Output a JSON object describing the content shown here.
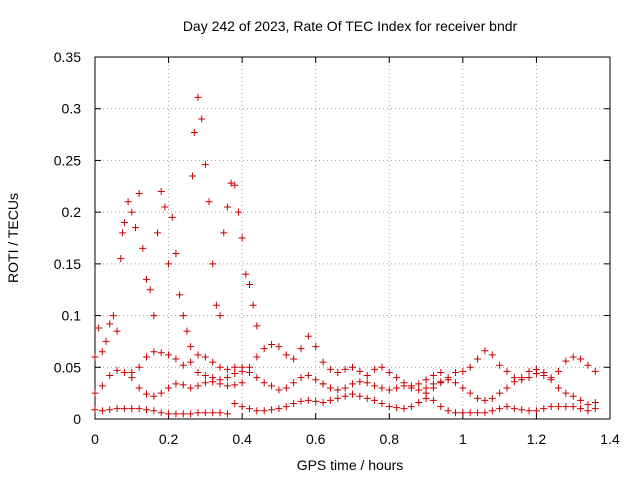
{
  "chart_data": {
    "type": "scatter",
    "title": "Day 242 of 2023, Rate Of TEC Index for receiver bndr",
    "xlabel": "GPS time / hours",
    "ylabel": "ROTI / TECUs",
    "xlim": [
      0,
      1.4
    ],
    "ylim": [
      0,
      0.35
    ],
    "xticks": [
      0,
      0.2,
      0.4,
      0.6,
      0.8,
      1,
      1.2,
      1.4
    ],
    "xtick_labels": [
      "0",
      "0.2",
      "0.4",
      "0.6",
      "0.8",
      "1",
      "1.2",
      "1.4"
    ],
    "yticks": [
      0,
      0.05,
      0.1,
      0.15,
      0.2,
      0.25,
      0.3,
      0.35
    ],
    "ytick_labels": [
      "0",
      "0.05",
      "0.1",
      "0.15",
      "0.2",
      "0.25",
      "0.3",
      "0.35"
    ],
    "grid": true,
    "marker": "+",
    "marker_color": "#cc0000",
    "series": [
      {
        "points": [
          [
            0.0,
            0.009
          ],
          [
            0.02,
            0.008
          ],
          [
            0.04,
            0.009
          ],
          [
            0.06,
            0.01
          ],
          [
            0.08,
            0.01
          ],
          [
            0.1,
            0.01
          ],
          [
            0.12,
            0.01
          ],
          [
            0.14,
            0.009
          ],
          [
            0.16,
            0.008
          ],
          [
            0.18,
            0.006
          ],
          [
            0.2,
            0.005
          ],
          [
            0.22,
            0.005
          ],
          [
            0.24,
            0.005
          ],
          [
            0.26,
            0.005
          ],
          [
            0.28,
            0.006
          ],
          [
            0.3,
            0.006
          ],
          [
            0.32,
            0.006
          ],
          [
            0.34,
            0.006
          ],
          [
            0.36,
            0.005
          ]
        ]
      },
      {
        "points": [
          [
            0.0,
            0.025
          ],
          [
            0.02,
            0.032
          ],
          [
            0.04,
            0.042
          ],
          [
            0.06,
            0.047
          ],
          [
            0.08,
            0.045
          ],
          [
            0.1,
            0.04
          ],
          [
            0.12,
            0.03
          ],
          [
            0.14,
            0.024
          ],
          [
            0.16,
            0.022
          ],
          [
            0.18,
            0.025
          ],
          [
            0.2,
            0.03
          ],
          [
            0.22,
            0.034
          ],
          [
            0.24,
            0.033
          ],
          [
            0.26,
            0.03
          ],
          [
            0.28,
            0.032
          ],
          [
            0.3,
            0.035
          ],
          [
            0.32,
            0.036
          ],
          [
            0.34,
            0.034
          ],
          [
            0.36,
            0.032
          ],
          [
            0.38,
            0.033
          ],
          [
            0.4,
            0.035
          ]
        ]
      },
      {
        "points": [
          [
            0.1,
            0.045
          ],
          [
            0.12,
            0.05
          ],
          [
            0.14,
            0.06
          ],
          [
            0.16,
            0.065
          ],
          [
            0.18,
            0.064
          ],
          [
            0.2,
            0.062
          ],
          [
            0.22,
            0.058
          ],
          [
            0.24,
            0.052
          ],
          [
            0.26,
            0.055
          ],
          [
            0.28,
            0.062
          ],
          [
            0.3,
            0.06
          ],
          [
            0.32,
            0.055
          ],
          [
            0.34,
            0.05
          ],
          [
            0.36,
            0.048
          ],
          [
            0.38,
            0.05
          ],
          [
            0.4,
            0.05
          ],
          [
            0.42,
            0.045
          ],
          [
            0.44,
            0.04
          ],
          [
            0.46,
            0.035
          ],
          [
            0.48,
            0.032
          ],
          [
            0.5,
            0.028
          ],
          [
            0.52,
            0.03
          ],
          [
            0.54,
            0.035
          ],
          [
            0.56,
            0.04
          ],
          [
            0.58,
            0.042
          ],
          [
            0.6,
            0.038
          ],
          [
            0.62,
            0.034
          ]
        ]
      },
      {
        "points": [
          [
            0.28,
            0.045
          ],
          [
            0.3,
            0.042
          ],
          [
            0.32,
            0.04
          ],
          [
            0.34,
            0.038
          ],
          [
            0.36,
            0.04
          ],
          [
            0.38,
            0.044
          ],
          [
            0.4,
            0.046
          ],
          [
            0.42,
            0.05
          ],
          [
            0.44,
            0.06
          ],
          [
            0.46,
            0.068
          ],
          [
            0.48,
            0.072
          ],
          [
            0.5,
            0.07
          ],
          [
            0.52,
            0.062
          ],
          [
            0.54,
            0.058
          ],
          [
            0.56,
            0.068
          ],
          [
            0.58,
            0.08
          ],
          [
            0.6,
            0.07
          ],
          [
            0.62,
            0.055
          ],
          [
            0.64,
            0.048
          ],
          [
            0.66,
            0.045
          ],
          [
            0.68,
            0.048
          ],
          [
            0.7,
            0.05
          ],
          [
            0.72,
            0.046
          ],
          [
            0.74,
            0.042
          ],
          [
            0.76,
            0.048
          ],
          [
            0.78,
            0.05
          ],
          [
            0.8,
            0.045
          ],
          [
            0.82,
            0.04
          ],
          [
            0.84,
            0.035
          ],
          [
            0.86,
            0.032
          ],
          [
            0.88,
            0.034
          ],
          [
            0.9,
            0.038
          ],
          [
            0.92,
            0.042
          ],
          [
            0.94,
            0.045
          ]
        ]
      },
      {
        "points": [
          [
            0.38,
            0.015
          ],
          [
            0.4,
            0.012
          ],
          [
            0.42,
            0.01
          ],
          [
            0.44,
            0.008
          ],
          [
            0.46,
            0.008
          ],
          [
            0.48,
            0.009
          ],
          [
            0.5,
            0.01
          ],
          [
            0.52,
            0.012
          ],
          [
            0.54,
            0.015
          ],
          [
            0.56,
            0.017
          ],
          [
            0.58,
            0.018
          ],
          [
            0.6,
            0.017
          ],
          [
            0.62,
            0.016
          ],
          [
            0.64,
            0.018
          ],
          [
            0.66,
            0.02
          ],
          [
            0.68,
            0.022
          ],
          [
            0.7,
            0.024
          ],
          [
            0.72,
            0.022
          ],
          [
            0.74,
            0.02
          ],
          [
            0.76,
            0.018
          ],
          [
            0.78,
            0.015
          ],
          [
            0.8,
            0.012
          ],
          [
            0.82,
            0.011
          ],
          [
            0.84,
            0.01
          ],
          [
            0.86,
            0.012
          ],
          [
            0.88,
            0.016
          ],
          [
            0.9,
            0.02
          ],
          [
            0.92,
            0.018
          ],
          [
            0.94,
            0.012
          ],
          [
            0.96,
            0.008
          ],
          [
            0.98,
            0.006
          ],
          [
            1.0,
            0.006
          ],
          [
            1.02,
            0.006
          ],
          [
            1.04,
            0.006
          ],
          [
            1.06,
            0.006
          ],
          [
            1.08,
            0.008
          ],
          [
            1.1,
            0.01
          ],
          [
            1.12,
            0.012
          ],
          [
            1.14,
            0.01
          ],
          [
            1.16,
            0.009
          ],
          [
            1.18,
            0.008
          ],
          [
            1.2,
            0.008
          ],
          [
            1.22,
            0.01
          ],
          [
            1.24,
            0.012
          ],
          [
            1.26,
            0.012
          ],
          [
            1.28,
            0.012
          ],
          [
            1.3,
            0.012
          ],
          [
            1.32,
            0.01
          ],
          [
            1.34,
            0.008
          ],
          [
            1.36,
            0.01
          ]
        ]
      },
      {
        "points": [
          [
            0.62,
            0.034
          ],
          [
            0.64,
            0.03
          ],
          [
            0.66,
            0.028
          ],
          [
            0.68,
            0.03
          ],
          [
            0.7,
            0.034
          ],
          [
            0.72,
            0.036
          ],
          [
            0.74,
            0.035
          ],
          [
            0.76,
            0.032
          ],
          [
            0.78,
            0.03
          ],
          [
            0.8,
            0.028
          ],
          [
            0.82,
            0.03
          ],
          [
            0.84,
            0.032
          ],
          [
            0.86,
            0.03
          ],
          [
            0.88,
            0.028
          ],
          [
            0.9,
            0.03
          ],
          [
            0.92,
            0.034
          ],
          [
            0.94,
            0.036
          ],
          [
            0.96,
            0.04
          ],
          [
            0.98,
            0.045
          ],
          [
            1.0,
            0.046
          ],
          [
            1.02,
            0.05
          ],
          [
            1.04,
            0.058
          ],
          [
            1.06,
            0.066
          ],
          [
            1.08,
            0.062
          ],
          [
            1.1,
            0.052
          ],
          [
            1.12,
            0.046
          ],
          [
            1.14,
            0.04
          ],
          [
            1.16,
            0.038
          ],
          [
            1.18,
            0.04
          ],
          [
            1.2,
            0.044
          ],
          [
            1.22,
            0.042
          ],
          [
            1.24,
            0.04
          ],
          [
            1.26,
            0.046
          ],
          [
            1.28,
            0.056
          ],
          [
            1.3,
            0.06
          ],
          [
            1.32,
            0.058
          ],
          [
            1.34,
            0.052
          ],
          [
            1.36,
            0.046
          ]
        ]
      },
      {
        "points": [
          [
            0.9,
            0.025
          ],
          [
            0.92,
            0.03
          ],
          [
            0.94,
            0.035
          ],
          [
            0.96,
            0.038
          ],
          [
            0.98,
            0.035
          ],
          [
            1.0,
            0.03
          ],
          [
            1.02,
            0.025
          ],
          [
            1.04,
            0.02
          ],
          [
            1.06,
            0.018
          ],
          [
            1.08,
            0.02
          ],
          [
            1.1,
            0.025
          ],
          [
            1.12,
            0.03
          ],
          [
            1.14,
            0.036
          ],
          [
            1.16,
            0.04
          ],
          [
            1.18,
            0.046
          ],
          [
            1.2,
            0.048
          ],
          [
            1.22,
            0.045
          ],
          [
            1.24,
            0.038
          ],
          [
            1.26,
            0.03
          ],
          [
            1.28,
            0.025
          ],
          [
            1.3,
            0.022
          ],
          [
            1.32,
            0.018
          ],
          [
            1.34,
            0.014
          ],
          [
            1.36,
            0.016
          ]
        ]
      },
      {
        "points": [
          [
            0.0,
            0.06
          ],
          [
            0.01,
            0.088
          ],
          [
            0.02,
            0.065
          ],
          [
            0.03,
            0.075
          ],
          [
            0.04,
            0.092
          ],
          [
            0.05,
            0.1
          ],
          [
            0.06,
            0.085
          ],
          [
            0.07,
            0.155
          ],
          [
            0.075,
            0.18
          ],
          [
            0.08,
            0.19
          ],
          [
            0.09,
            0.21
          ],
          [
            0.1,
            0.2
          ],
          [
            0.11,
            0.185
          ],
          [
            0.12,
            0.218
          ],
          [
            0.13,
            0.165
          ],
          [
            0.14,
            0.135
          ],
          [
            0.15,
            0.125
          ],
          [
            0.16,
            0.1
          ],
          [
            0.17,
            0.18
          ],
          [
            0.18,
            0.22
          ],
          [
            0.19,
            0.205
          ],
          [
            0.2,
            0.15
          ],
          [
            0.21,
            0.195
          ],
          [
            0.22,
            0.16
          ],
          [
            0.23,
            0.12
          ],
          [
            0.24,
            0.1
          ],
          [
            0.25,
            0.085
          ],
          [
            0.26,
            0.07
          ],
          [
            0.265,
            0.235
          ],
          [
            0.27,
            0.277
          ],
          [
            0.28,
            0.311
          ],
          [
            0.29,
            0.29
          ],
          [
            0.3,
            0.246
          ],
          [
            0.31,
            0.21
          ],
          [
            0.32,
            0.15
          ],
          [
            0.33,
            0.11
          ],
          [
            0.34,
            0.1
          ],
          [
            0.35,
            0.18
          ],
          [
            0.36,
            0.205
          ],
          [
            0.37,
            0.228
          ],
          [
            0.38,
            0.226
          ],
          [
            0.39,
            0.2
          ],
          [
            0.4,
            0.175
          ],
          [
            0.41,
            0.14
          ],
          [
            0.42,
            0.13
          ],
          [
            0.43,
            0.11
          ],
          [
            0.44,
            0.09
          ]
        ]
      }
    ]
  }
}
